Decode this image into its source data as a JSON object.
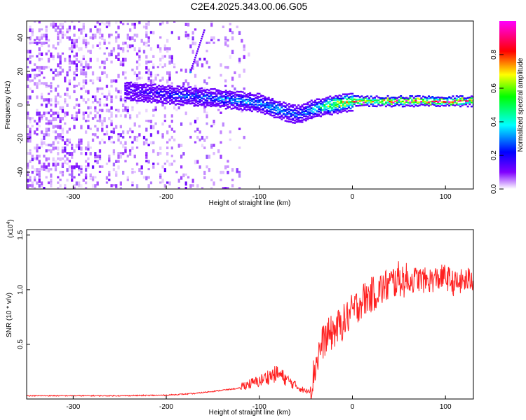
{
  "title": "C2E4.2025.343.00.06.G05",
  "chart_data": [
    {
      "type": "heatmap",
      "xlabel": "Height of straight line (km)",
      "ylabel": "Frequency (Hz)",
      "xlim": [
        -350,
        130
      ],
      "ylim": [
        -50,
        50
      ],
      "xticks": [
        -300,
        -200,
        -100,
        0,
        100
      ],
      "yticks": [
        -40,
        -20,
        0,
        20,
        40
      ],
      "colorbar": {
        "label": "Normalized spectral amplitude",
        "range": [
          0,
          1
        ],
        "ticks": [
          "0.0",
          "0.2",
          "0.4",
          "0.6",
          "0.8"
        ],
        "colormap": [
          "#ffffff",
          "#8000ff",
          "#0000ff",
          "#00ffff",
          "#00ff00",
          "#ffff00",
          "#ff0000",
          "#ff00ff"
        ]
      },
      "ridge": {
        "description_points_x": [
          -240,
          -200,
          -150,
          -100,
          -80,
          -60,
          -40,
          -20,
          0,
          50,
          130
        ],
        "frequency_hz": [
          8,
          6,
          4,
          1,
          -3,
          -6,
          -2,
          0,
          2,
          2,
          2
        ],
        "amplitude": [
          0.15,
          0.25,
          0.3,
          0.35,
          0.4,
          0.3,
          0.45,
          0.7,
          0.85,
          0.9,
          0.9
        ]
      },
      "noise_region_x": [
        -350,
        -110
      ],
      "feature_line": {
        "x": [
          -175,
          -160
        ],
        "y": [
          20,
          45
        ]
      }
    },
    {
      "type": "line",
      "xlabel": "Height of straight line (km)",
      "ylabel": "SNR (10 * v/v)",
      "yscale_label": "(x10",
      "yscale_exponent": "4",
      "xlim": [
        -350,
        130
      ],
      "ylim": [
        0,
        1.55
      ],
      "xticks": [
        -300,
        -200,
        -100,
        0,
        100
      ],
      "yticks": [
        "0.5",
        "1.0",
        "1.5"
      ],
      "color": "#ff2020",
      "series": [
        {
          "x": [
            -350,
            -300,
            -250,
            -200,
            -170,
            -150,
            -120,
            -100,
            -90,
            -80,
            -70,
            -60,
            -50,
            -45,
            -40,
            -35,
            -30,
            -20,
            -10,
            0,
            10,
            20,
            30,
            40,
            50,
            60,
            70,
            80,
            90,
            100,
            110,
            120,
            130
          ],
          "values": [
            0.03,
            0.03,
            0.03,
            0.035,
            0.05,
            0.07,
            0.1,
            0.14,
            0.18,
            0.2,
            0.15,
            0.1,
            0.06,
            0.08,
            0.3,
            0.45,
            0.55,
            0.62,
            0.7,
            0.8,
            0.9,
            0.95,
            1.0,
            1.05,
            1.1,
            1.08,
            1.1,
            1.08,
            1.1,
            1.12,
            1.05,
            1.08,
            1.1
          ]
        }
      ]
    }
  ]
}
